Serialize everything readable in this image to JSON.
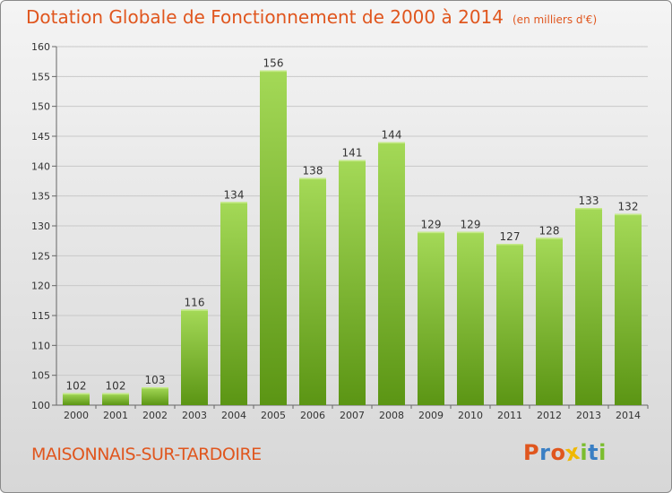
{
  "header": {
    "title": "Dotation Globale de Fonctionnement de 2000 à 2014",
    "unit": "(en milliers d'€)"
  },
  "footer": {
    "commune": "MAISONNAIS-SUR-TARDOIRE",
    "brand": "Proxiti"
  },
  "colors": {
    "title": "#e0561e",
    "bar_light": "#9bd04c",
    "bar_dark": "#5f9a17",
    "grid": "#c8c8c8",
    "brand": [
      "#e0561e",
      "#3a7fc4",
      "#e0561e",
      "#f0b800",
      "#7bbd2e",
      "#3a7fc4",
      "#7bbd2e"
    ]
  },
  "chart_data": {
    "type": "bar",
    "title": "Dotation Globale de Fonctionnement de 2000 à 2014",
    "categories": [
      "2000",
      "2001",
      "2002",
      "2003",
      "2004",
      "2005",
      "2006",
      "2007",
      "2008",
      "2009",
      "2010",
      "2011",
      "2012",
      "2013",
      "2014"
    ],
    "values": [
      102,
      102,
      103,
      116,
      134,
      156,
      138,
      141,
      144,
      129,
      129,
      127,
      128,
      133,
      132
    ],
    "ylim": [
      100,
      160
    ],
    "yticks": [
      100,
      105,
      110,
      115,
      120,
      125,
      130,
      135,
      140,
      145,
      150,
      155,
      160
    ],
    "grid": true,
    "xlabel": "",
    "ylabel": ""
  }
}
